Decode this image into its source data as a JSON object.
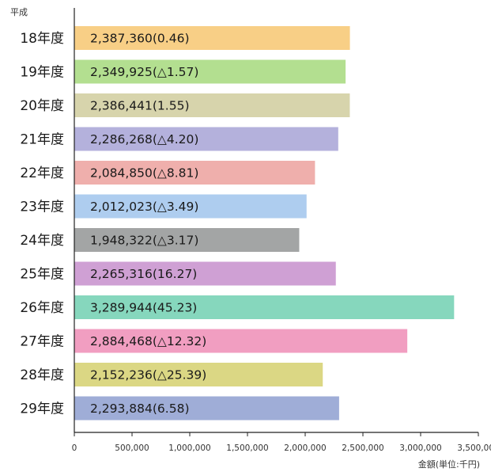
{
  "chart_data": {
    "type": "bar",
    "orientation": "horizontal",
    "era_label": "平成",
    "unit_label": "金額(単位:千円)",
    "categories": [
      "18年度",
      "19年度",
      "20年度",
      "21年度",
      "22年度",
      "23年度",
      "24年度",
      "25年度",
      "26年度",
      "27年度",
      "28年度",
      "29年度"
    ],
    "values": [
      2387360,
      2349925,
      2386441,
      2286268,
      2084850,
      2012023,
      1948322,
      2265316,
      3289944,
      2884468,
      2152236,
      2293884
    ],
    "bar_labels": [
      "2,387,360(0.46)",
      "2,349,925(△1.57)",
      "2,386,441(1.55)",
      "2,286,268(△4.20)",
      "2,084,850(△8.81)",
      "2,012,023(△3.49)",
      "1,948,322(△3.17)",
      "2,265,316(16.27)",
      "3,289,944(45.23)",
      "2,884,468(△12.32)",
      "2,152,236(△25.39)",
      "2,293,884(6.58)"
    ],
    "bar_colors": [
      "#f8cf86",
      "#b3df90",
      "#d7d4ac",
      "#b4b1dc",
      "#efafac",
      "#aecdef",
      "#a3a5a5",
      "#cfa0d4",
      "#86d7bd",
      "#f19ec1",
      "#dbd784",
      "#9fadd7"
    ],
    "xlim": [
      0,
      3500000
    ],
    "xticks": [
      0,
      500000,
      1000000,
      1500000,
      2000000,
      2500000,
      3000000,
      3500000
    ],
    "xtick_labels": [
      "0",
      "500,000",
      "1,000,000",
      "1,500,000",
      "2,000,000",
      "2,500,000",
      "3,000,000",
      "3,500,000"
    ],
    "grid": false,
    "legend": "none"
  }
}
